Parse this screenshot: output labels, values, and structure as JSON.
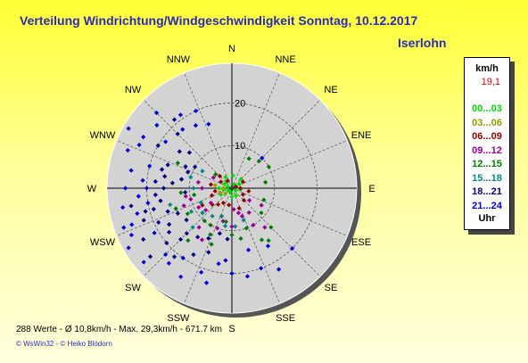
{
  "title": "Verteilung Windrichtung/Windgeschwindigkeit  Sonntag, 10.12.2017",
  "location": "Iserlohn",
  "chart_data": {
    "type": "scatter",
    "coordinate_system": "polar",
    "title": "Verteilung Windrichtung/Windgeschwindigkeit  Sonntag, 10.12.2017",
    "directions": [
      "N",
      "NNE",
      "NE",
      "ENE",
      "E",
      "ESE",
      "SE",
      "SSE",
      "S",
      "SSW",
      "SW",
      "WSW",
      "W",
      "WNW",
      "NW",
      "NNW"
    ],
    "radial_ticks": [
      10,
      20
    ],
    "radial_max": 29.3,
    "unit": "km/h",
    "legend_max": "19,1",
    "series": [
      {
        "name": "00...03",
        "color": "#00e000",
        "points": [
          [
            5,
            3
          ],
          [
            100,
            2
          ],
          [
            200,
            1
          ],
          [
            300,
            2
          ],
          [
            240,
            1
          ],
          [
            330,
            3
          ],
          [
            60,
            2
          ],
          [
            150,
            2
          ],
          [
            270,
            3
          ],
          [
            30,
            1
          ],
          [
            180,
            2
          ],
          [
            45,
            3
          ],
          [
            290,
            1
          ],
          [
            260,
            2
          ],
          [
            80,
            1
          ],
          [
            315,
            2
          ],
          [
            240,
            3
          ],
          [
            120,
            1
          ]
        ]
      },
      {
        "name": "03...06",
        "color": "#9a9a00",
        "points": [
          [
            270,
            2
          ],
          [
            250,
            3
          ],
          [
            280,
            4
          ],
          [
            300,
            3
          ],
          [
            230,
            2
          ]
        ]
      },
      {
        "name": "06...09",
        "color": "#990000",
        "points": [
          [
            70,
            1
          ],
          [
            90,
            2
          ],
          [
            120,
            3
          ],
          [
            135,
            4
          ],
          [
            250,
            5
          ],
          [
            230,
            6
          ],
          [
            260,
            4
          ],
          [
            210,
            4
          ],
          [
            280,
            5
          ],
          [
            300,
            3
          ],
          [
            315,
            4
          ],
          [
            190,
            4
          ],
          [
            240,
            8
          ],
          [
            100,
            4
          ],
          [
            60,
            3
          ],
          [
            330,
            2
          ],
          [
            200,
            7
          ],
          [
            220,
            5
          ],
          [
            160,
            5
          ]
        ]
      },
      {
        "name": "09...12",
        "color": "#990099",
        "points": [
          [
            140,
            12
          ],
          [
            150,
            10
          ],
          [
            120,
            8
          ],
          [
            160,
            7
          ],
          [
            180,
            9
          ],
          [
            200,
            10
          ],
          [
            220,
            12
          ],
          [
            240,
            9
          ],
          [
            260,
            11
          ],
          [
            280,
            8
          ],
          [
            300,
            5
          ],
          [
            125,
            5
          ],
          [
            165,
            6
          ],
          [
            195,
            8
          ],
          [
            210,
            14
          ],
          [
            235,
            6
          ],
          [
            250,
            12
          ],
          [
            270,
            7
          ],
          [
            145,
            7
          ],
          [
            175,
            5
          ],
          [
            230,
            8
          ],
          [
            255,
            10
          ]
        ]
      },
      {
        "name": "12...15",
        "color": "#007d00",
        "points": [
          [
            30,
            8
          ],
          [
            45,
            9
          ],
          [
            60,
            10
          ],
          [
            80,
            8
          ],
          [
            110,
            8
          ],
          [
            130,
            9
          ],
          [
            145,
            15
          ],
          [
            160,
            10
          ],
          [
            170,
            12
          ],
          [
            200,
            14
          ],
          [
            220,
            10
          ],
          [
            230,
            9
          ],
          [
            250,
            14
          ],
          [
            260,
            9
          ],
          [
            280,
            12
          ],
          [
            295,
            14
          ],
          [
            310,
            5
          ],
          [
            135,
            13
          ],
          [
            150,
            14
          ],
          [
            190,
            8
          ],
          [
            210,
            10
          ],
          [
            240,
            12
          ],
          [
            265,
            12
          ],
          [
            220,
            16
          ],
          [
            180,
            11
          ],
          [
            205,
            12
          ]
        ]
      },
      {
        "name": "15...18",
        "color": "#008888",
        "points": [
          [
            160,
            8
          ],
          [
            190,
            9
          ],
          [
            200,
            7
          ],
          [
            215,
            8
          ],
          [
            230,
            9
          ],
          [
            240,
            11
          ],
          [
            255,
            15
          ],
          [
            270,
            9
          ],
          [
            285,
            10
          ],
          [
            300,
            8
          ],
          [
            175,
            9
          ],
          [
            225,
            13
          ],
          [
            245,
            8
          ]
        ]
      },
      {
        "name": "18...21",
        "color": "#000088",
        "points": [
          [
            200,
            16
          ],
          [
            210,
            18
          ],
          [
            225,
            17
          ],
          [
            235,
            18
          ],
          [
            245,
            19
          ],
          [
            250,
            16
          ],
          [
            260,
            17
          ],
          [
            265,
            18
          ],
          [
            270,
            16
          ],
          [
            275,
            18
          ],
          [
            255,
            19
          ],
          [
            240,
            17
          ],
          [
            230,
            20
          ],
          [
            220,
            21
          ],
          [
            215,
            14
          ],
          [
            205,
            13
          ],
          [
            195,
            11
          ],
          [
            185,
            12
          ],
          [
            275,
            14
          ],
          [
            280,
            12
          ],
          [
            285,
            17
          ],
          [
            290,
            11
          ],
          [
            295,
            12
          ],
          [
            300,
            10
          ],
          [
            305,
            15
          ],
          [
            310,
            13
          ],
          [
            315,
            18
          ],
          [
            320,
            21
          ],
          [
            250,
            22
          ],
          [
            240,
            24
          ],
          [
            230,
            25
          ],
          [
            260,
            24
          ],
          [
            255,
            21
          ],
          [
            245,
            14
          ],
          [
            235,
            13
          ],
          [
            225,
            15
          ],
          [
            265,
            11
          ],
          [
            280,
            16
          ],
          [
            290,
            16
          ],
          [
            300,
            20
          ]
        ]
      },
      {
        "name": "21...24",
        "color": "#0000dd",
        "points": [
          [
            150,
            22
          ],
          [
            160,
            20
          ],
          [
            170,
            21
          ],
          [
            180,
            20
          ],
          [
            190,
            18
          ],
          [
            200,
            21
          ],
          [
            210,
            24
          ],
          [
            220,
            23
          ],
          [
            230,
            27
          ],
          [
            240,
            28
          ],
          [
            250,
            27
          ],
          [
            260,
            26
          ],
          [
            270,
            25
          ],
          [
            280,
            24
          ],
          [
            290,
            26
          ],
          [
            300,
            28
          ],
          [
            310,
            23
          ],
          [
            320,
            18
          ],
          [
            330,
            17
          ],
          [
            340,
            16
          ],
          [
            45,
            10
          ],
          [
            135,
            20
          ],
          [
            148,
            16
          ],
          [
            165,
            15
          ],
          [
            185,
            17
          ],
          [
            195,
            23
          ],
          [
            215,
            20
          ],
          [
            225,
            22
          ],
          [
            245,
            26
          ],
          [
            255,
            23
          ],
          [
            265,
            22
          ],
          [
            275,
            21
          ],
          [
            285,
            20
          ],
          [
            295,
            24
          ],
          [
            305,
            19
          ],
          [
            315,
            25
          ],
          [
            325,
            21
          ],
          [
            335,
            20
          ],
          [
            300,
            24
          ],
          [
            270,
            20
          ],
          [
            260,
            20
          ],
          [
            250,
            25
          ],
          [
            240,
            21
          ]
        ]
      }
    ]
  },
  "legend": {
    "unit": "km/h",
    "max_value": "19,1",
    "footer": "Uhr"
  },
  "stats": "288 Werte   -   Ø 10,8km/h   -  Max. 29,3km/h   -    671.7 km",
  "copyright": "© WsWin32  -  © Heiko Blödorn"
}
